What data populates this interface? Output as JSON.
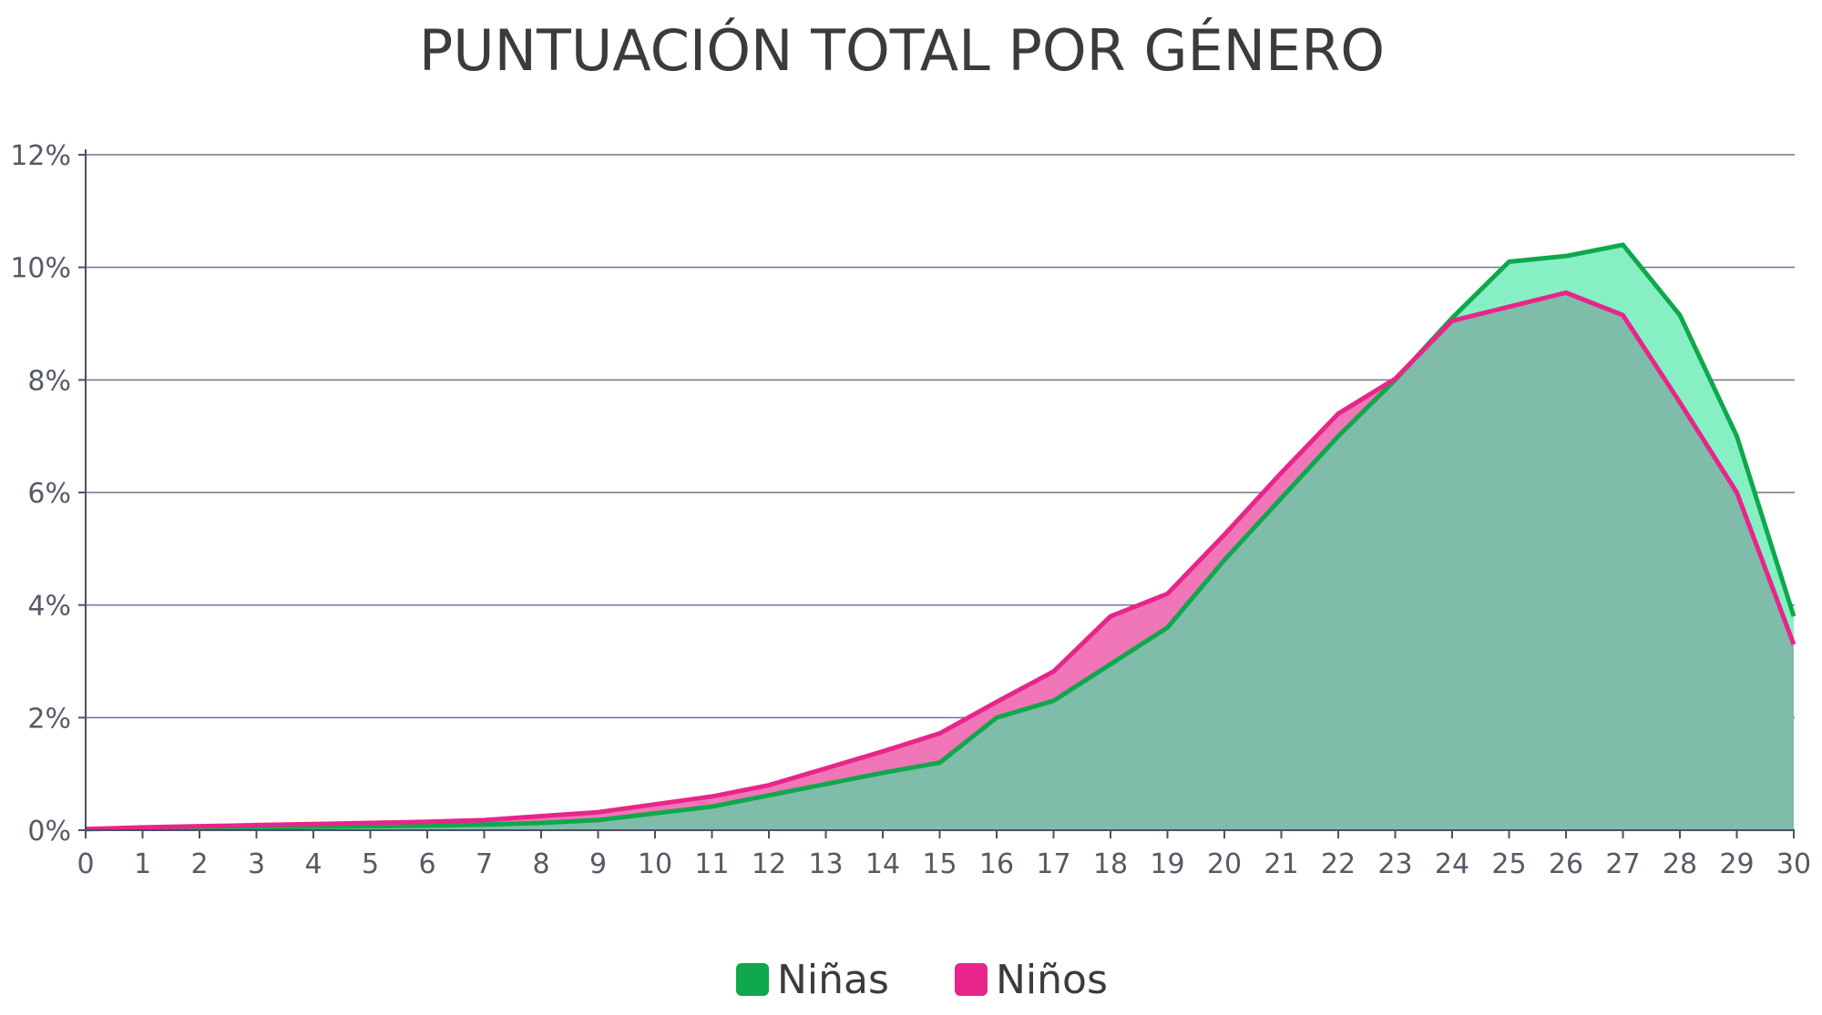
{
  "chart_data": {
    "type": "area",
    "title": "PUNTUACIÓN TOTAL POR GÉNERO",
    "xlabel": "",
    "ylabel": "",
    "x": [
      0,
      1,
      2,
      3,
      4,
      5,
      6,
      7,
      8,
      9,
      10,
      11,
      12,
      13,
      14,
      15,
      16,
      17,
      18,
      19,
      20,
      21,
      22,
      23,
      24,
      25,
      26,
      27,
      28,
      29,
      30
    ],
    "xlim": [
      0,
      30
    ],
    "ylim": [
      0,
      12
    ],
    "y_ticks": [
      0,
      2,
      4,
      6,
      8,
      10,
      12
    ],
    "y_tick_labels": [
      "0%",
      "2%",
      "4%",
      "6%",
      "8%",
      "10%",
      "12%"
    ],
    "x_tick_labels": [
      "0",
      "1",
      "2",
      "3",
      "4",
      "5",
      "6",
      "7",
      "8",
      "9",
      "10",
      "11",
      "12",
      "13",
      "14",
      "15",
      "16",
      "17",
      "18",
      "19",
      "20",
      "21",
      "22",
      "23",
      "24",
      "25",
      "26",
      "27",
      "28",
      "29",
      "30"
    ],
    "grid": true,
    "legend_position": "bottom-center",
    "series": [
      {
        "name": "Niñas",
        "line_color": "#0fa84c",
        "fill_color": "#86f0c4",
        "values": [
          0.02,
          0.03,
          0.04,
          0.05,
          0.06,
          0.07,
          0.08,
          0.1,
          0.13,
          0.18,
          0.3,
          0.42,
          0.62,
          0.82,
          1.02,
          1.2,
          2.0,
          2.3,
          2.95,
          3.6,
          4.8,
          5.9,
          7.0,
          8.0,
          9.1,
          10.1,
          10.2,
          10.4,
          9.15,
          7.0,
          3.8
        ]
      },
      {
        "name": "Niños",
        "line_color": "#e8258a",
        "fill_color": "#f076b8",
        "values": [
          0.02,
          0.05,
          0.07,
          0.09,
          0.11,
          0.13,
          0.15,
          0.18,
          0.25,
          0.32,
          0.46,
          0.6,
          0.8,
          1.1,
          1.4,
          1.72,
          2.28,
          2.82,
          3.8,
          4.2,
          5.25,
          6.35,
          7.4,
          8.02,
          9.05,
          9.3,
          9.55,
          9.15,
          7.6,
          6.0,
          3.3
        ]
      }
    ],
    "overlap_fill_color": "#7fbca9",
    "axis_color": "#4a4f66",
    "grid_color": "#6e7390"
  }
}
